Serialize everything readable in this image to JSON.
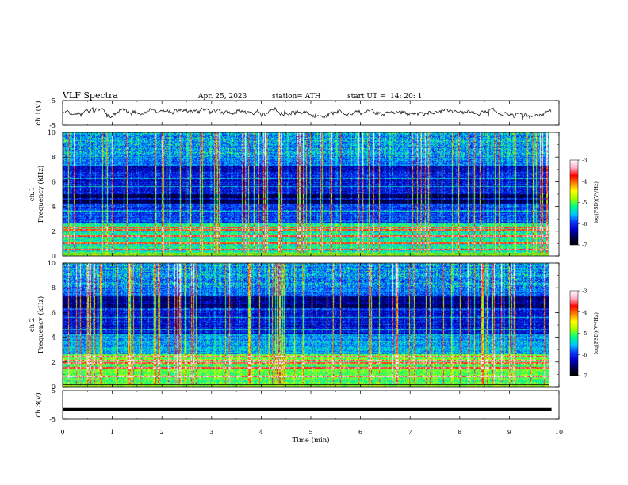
{
  "header": {
    "title": "VLF  Spectra",
    "date": "Apr. 25, 2023",
    "station": "station= ATH",
    "start_label": "start  UT  =",
    "start_time": "14: 20: 1"
  },
  "colors": {
    "trace": "#000000",
    "colormap": [
      "#000000",
      "#00004c",
      "#0000c8",
      "#0a3cff",
      "#00c8ff",
      "#00ff80",
      "#a0ff00",
      "#ffff00",
      "#ff8000",
      "#ff0000",
      "#ffb0c8",
      "#ffffff"
    ]
  },
  "chart_data": [
    {
      "type": "line",
      "name": "ch1-waveform",
      "ylabel": "ch.1(V)",
      "xlim": [
        0,
        10
      ],
      "ylim": [
        -5,
        5
      ],
      "yticks": [
        5,
        -5
      ],
      "level": 0.3
    },
    {
      "type": "heatmap",
      "name": "ch1-spectrogram",
      "ylabel": "ch.1\nFrequency (kHz)",
      "xlim": [
        0,
        9.85
      ],
      "ylim": [
        0,
        10
      ],
      "yticks": [
        0,
        2,
        4,
        6,
        8,
        10
      ],
      "colorbar": {
        "label": "log(PSD)(V²/Hz)",
        "range": [
          -7,
          -3
        ],
        "ticks": [
          -3,
          -4,
          -5,
          -6,
          -7
        ]
      },
      "bands_khz": [
        0.5,
        1.0,
        1.6,
        2.1,
        2.3
      ]
    },
    {
      "type": "heatmap",
      "name": "ch2-spectrogram",
      "ylabel": "ch.2\nFrequency (kHz)",
      "xlim": [
        0,
        9.85
      ],
      "ylim": [
        0,
        10
      ],
      "yticks": [
        0,
        2,
        4,
        6,
        8,
        10
      ],
      "colorbar": {
        "label": "log(PSD)(V²/Hz)",
        "range": [
          -7,
          -3
        ],
        "ticks": [
          -3,
          -4,
          -5,
          -6,
          -7
        ]
      },
      "bands_khz": [
        0.8,
        1.5,
        1.9,
        2.1,
        2.4
      ]
    },
    {
      "type": "line",
      "name": "ch3-waveform",
      "ylabel": "ch.3(V)",
      "xlim": [
        0,
        10
      ],
      "ylim": [
        -5,
        5
      ],
      "yticks": [
        5,
        -5
      ],
      "level": -1.5
    }
  ],
  "xaxis": {
    "label": "Time  (min)",
    "ticks": [
      "0",
      "1",
      "2",
      "3",
      "4",
      "5",
      "6",
      "7",
      "8",
      "9",
      "10"
    ]
  }
}
